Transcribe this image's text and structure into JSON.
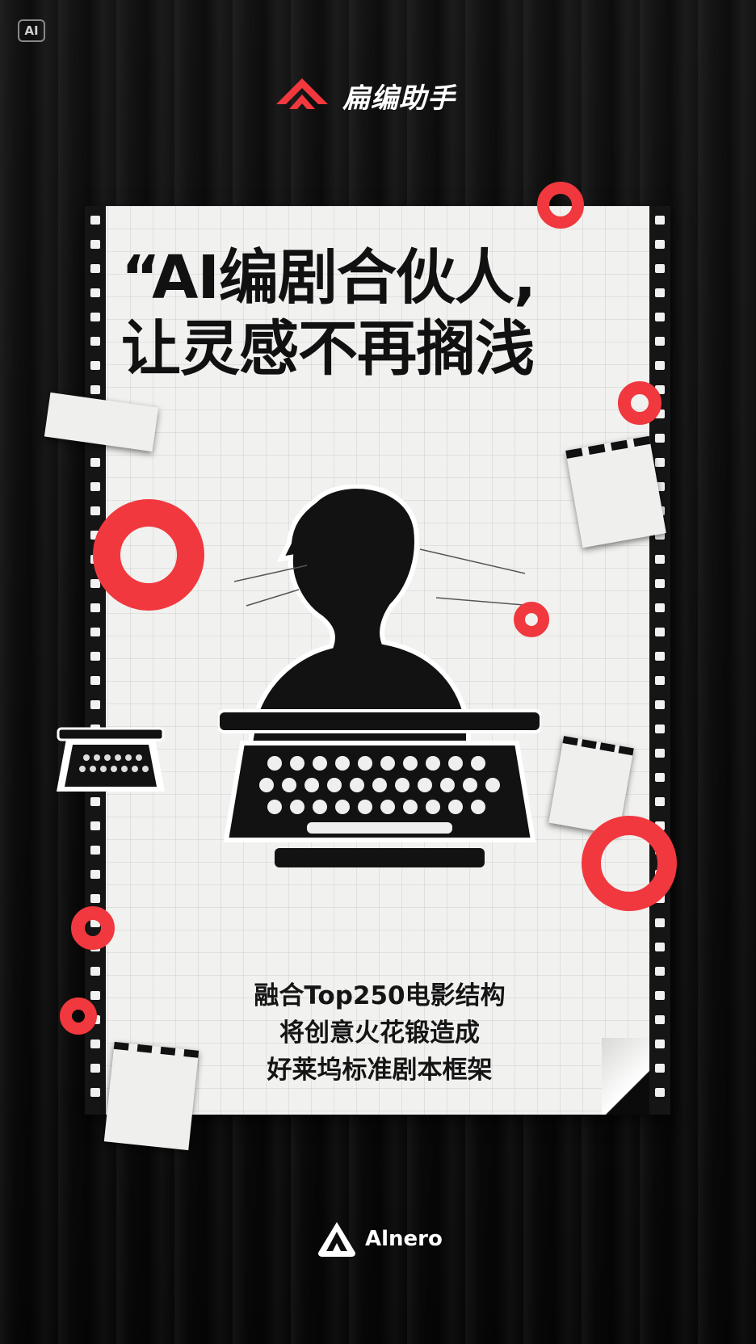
{
  "badge": {
    "label": "AI"
  },
  "brand": {
    "name": "扁编助手"
  },
  "headline": {
    "line1": "“AI编剧合伙人,",
    "line2": "让灵感不再搁浅"
  },
  "subtext": {
    "line1": "融合Top250电影结构",
    "line2": "将创意火花锻造成",
    "line3": "好莱坞标准剧本框架"
  },
  "footer": {
    "brand": "Alnero"
  },
  "colors": {
    "accent": "#f0383e",
    "paper": "#f1f1ef",
    "ink": "#111111",
    "background": "#0b0b0b"
  },
  "icons": [
    "brand-logo-icon",
    "typewriter-icon",
    "person-silhouette-icon",
    "alnero-logo-icon"
  ]
}
